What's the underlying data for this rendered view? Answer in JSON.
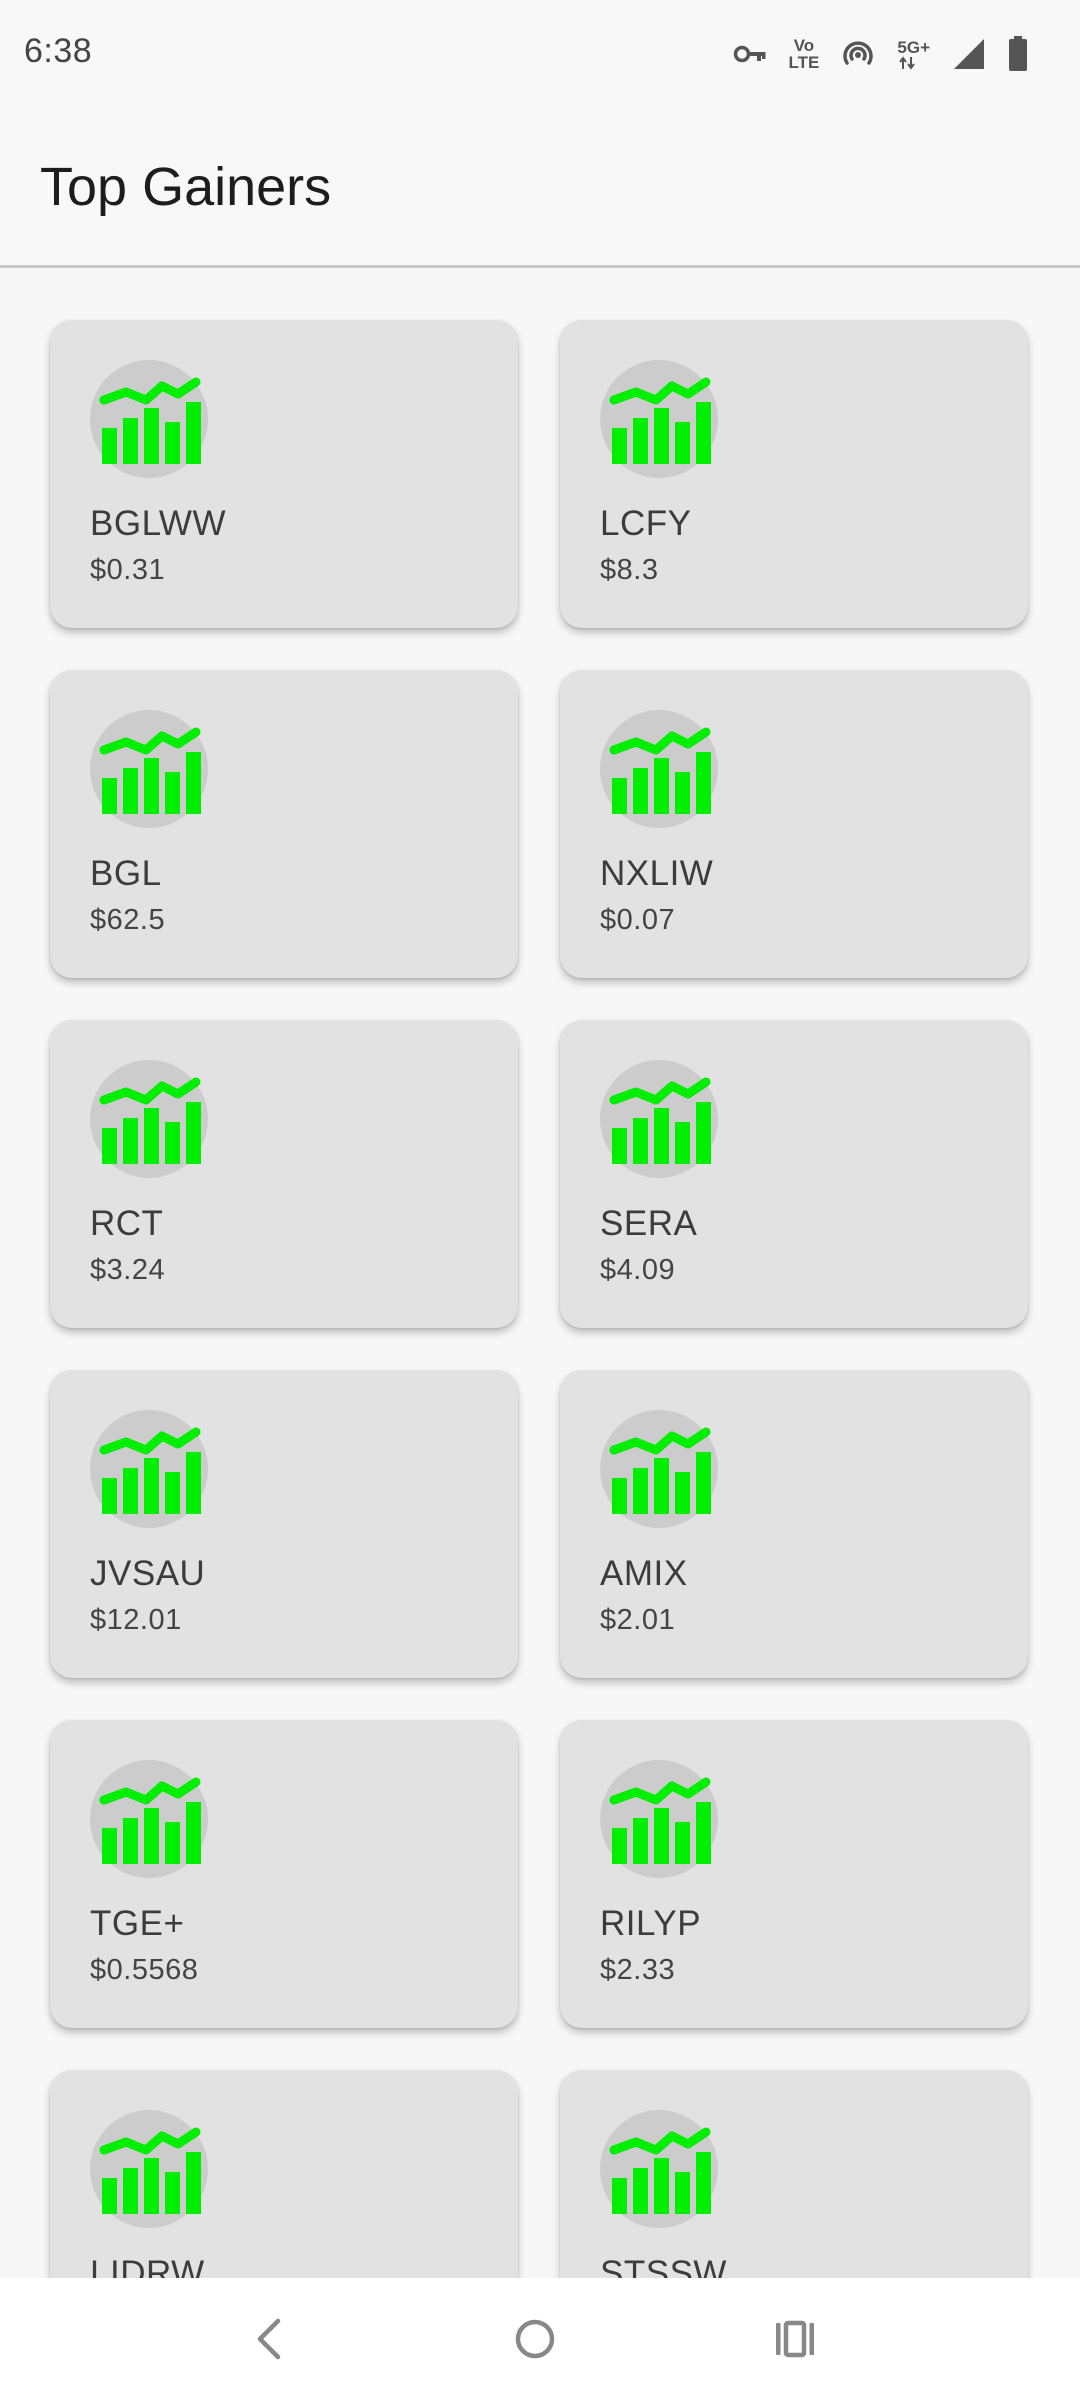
{
  "status_bar": {
    "time": "6:38",
    "icons": [
      "vpn-key-icon",
      "volte-icon",
      "hotspot-icon",
      "5g-plus-icon",
      "signal-icon",
      "battery-icon"
    ],
    "volte_label_top": "Vo",
    "volte_label_bottom": "LTE",
    "network_label": "5G+"
  },
  "app_bar": {
    "title": "Top Gainers"
  },
  "colors": {
    "chart_green": "#00ee00",
    "icon_circle": "#cccccc",
    "card_bg": "#e2e2e2",
    "page_bg": "#f7f7f7"
  },
  "stocks": [
    {
      "symbol": "BGLWW",
      "price": "$0.31"
    },
    {
      "symbol": "LCFY",
      "price": "$8.3"
    },
    {
      "symbol": "BGL",
      "price": "$62.5"
    },
    {
      "symbol": "NXLIW",
      "price": "$0.07"
    },
    {
      "symbol": "RCT",
      "price": "$3.24"
    },
    {
      "symbol": "SERA",
      "price": "$4.09"
    },
    {
      "symbol": "JVSAU",
      "price": "$12.01"
    },
    {
      "symbol": "AMIX",
      "price": "$2.01"
    },
    {
      "symbol": "TGE+",
      "price": "$0.5568"
    },
    {
      "symbol": "RILYP",
      "price": "$2.33"
    },
    {
      "symbol": "LIDRW",
      "price": ""
    },
    {
      "symbol": "STSSW",
      "price": ""
    }
  ],
  "nav_bar": {
    "buttons": [
      "back-icon",
      "home-icon",
      "recents-icon"
    ]
  }
}
